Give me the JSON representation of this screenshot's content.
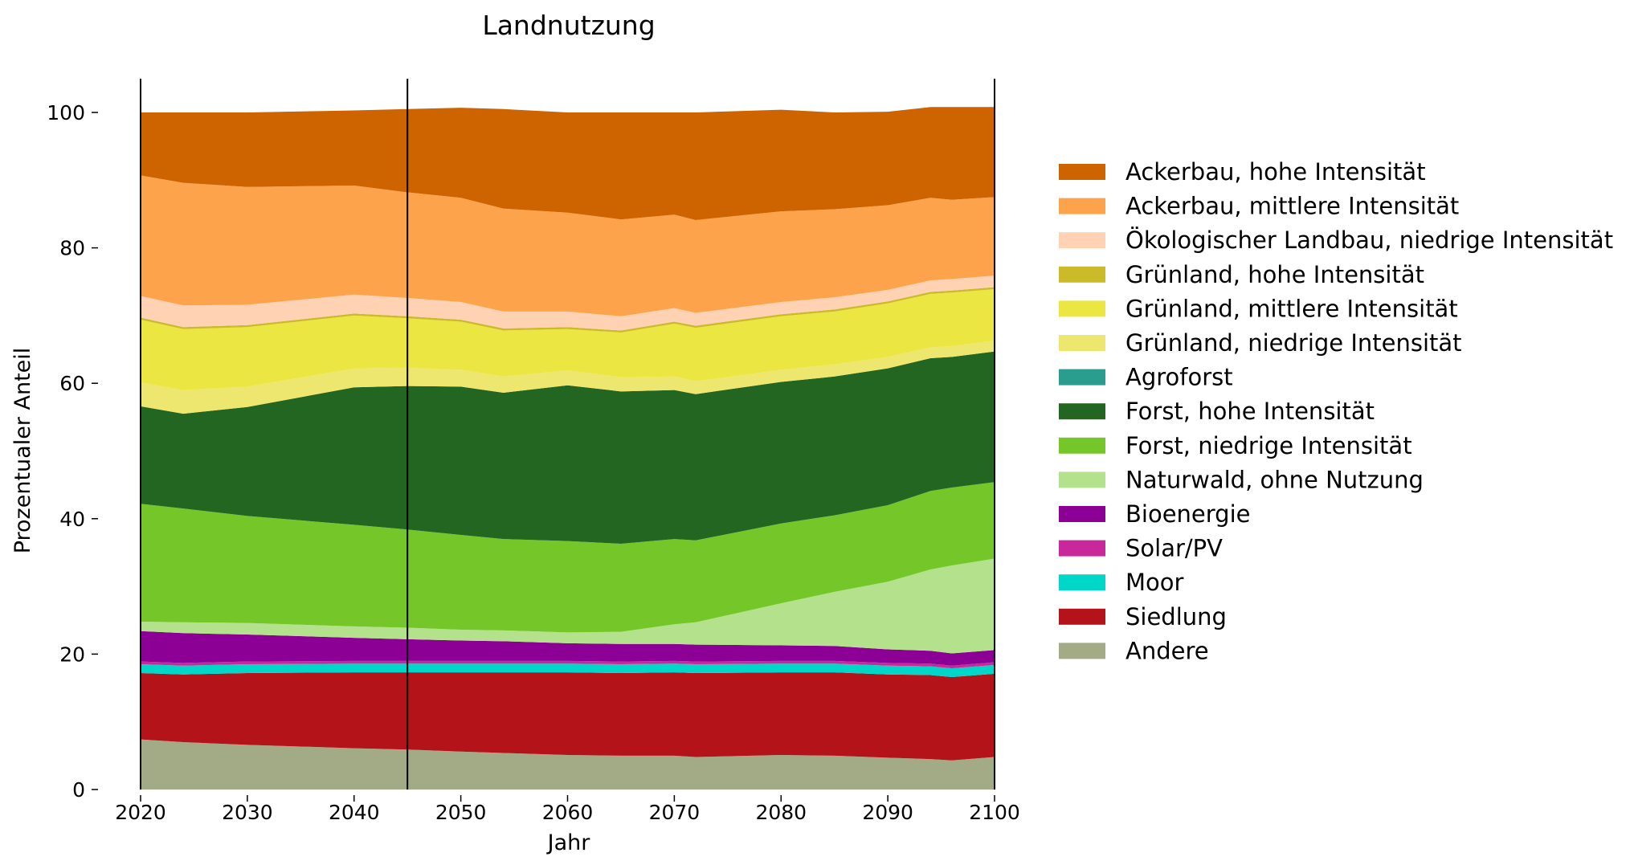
{
  "chart_data": {
    "type": "area",
    "stacked": true,
    "title": "Landnutzung",
    "xlabel": "Jahr",
    "ylabel": "Prozentualer Anteil",
    "xlim": [
      2020,
      2100
    ],
    "ylim": [
      0,
      100
    ],
    "xticks": [
      2020,
      2030,
      2040,
      2050,
      2060,
      2070,
      2080,
      2090,
      2100
    ],
    "yticks": [
      0,
      20,
      40,
      60,
      80,
      100
    ],
    "vlines": [
      2020,
      2045,
      2100
    ],
    "legend_position": "right",
    "x": [
      2020,
      2024,
      2030,
      2040,
      2045,
      2050,
      2054,
      2060,
      2065,
      2070,
      2072,
      2080,
      2085,
      2090,
      2094,
      2096,
      2100
    ],
    "series": [
      {
        "name": "Andere",
        "color": "#a3ab86",
        "values": [
          7.4,
          7.0,
          6.6,
          6.1,
          5.9,
          5.6,
          5.4,
          5.1,
          5.0,
          5.0,
          4.8,
          5.1,
          5.0,
          4.7,
          4.5,
          4.3,
          4.8
        ]
      },
      {
        "name": "Siedlung",
        "color": "#b41419",
        "values": [
          9.8,
          10.0,
          10.6,
          11.2,
          11.4,
          11.7,
          11.9,
          12.2,
          12.2,
          12.3,
          12.4,
          12.2,
          12.3,
          12.3,
          12.4,
          12.3,
          12.3
        ]
      },
      {
        "name": "Moor",
        "color": "#00d7c8",
        "values": [
          1.3,
          1.3,
          1.3,
          1.3,
          1.3,
          1.3,
          1.3,
          1.3,
          1.3,
          1.3,
          1.3,
          1.3,
          1.3,
          1.3,
          1.3,
          1.3,
          1.3
        ]
      },
      {
        "name": "Solar/PV",
        "color": "#c8289b",
        "values": [
          0.4,
          0.4,
          0.4,
          0.4,
          0.4,
          0.4,
          0.4,
          0.4,
          0.4,
          0.4,
          0.4,
          0.4,
          0.4,
          0.4,
          0.4,
          0.4,
          0.4
        ]
      },
      {
        "name": "Bioenergie",
        "color": "#8c0096",
        "values": [
          4.5,
          4.4,
          4.0,
          3.4,
          3.2,
          3.0,
          2.9,
          2.6,
          2.6,
          2.5,
          2.5,
          2.3,
          2.2,
          2.0,
          1.9,
          1.8,
          1.8
        ]
      },
      {
        "name": "Naturwald, ohne Nutzung",
        "color": "#b4e18c",
        "values": [
          1.4,
          1.6,
          1.7,
          1.7,
          1.7,
          1.6,
          1.6,
          1.6,
          1.8,
          2.9,
          3.3,
          6.2,
          8.0,
          10.0,
          12.0,
          13.0,
          13.5
        ]
      },
      {
        "name": "Forst, niedrige Intensität",
        "color": "#74c629",
        "values": [
          17.4,
          16.8,
          15.8,
          15.0,
          14.5,
          14.0,
          13.5,
          13.5,
          13.0,
          12.6,
          12.1,
          11.8,
          11.3,
          11.3,
          11.6,
          11.5,
          11.3
        ]
      },
      {
        "name": "Forst, hohe Intensität",
        "color": "#226622",
        "values": [
          14.4,
          14.0,
          16.1,
          20.3,
          21.2,
          21.9,
          21.6,
          23.0,
          22.5,
          22.0,
          21.6,
          20.9,
          20.5,
          20.2,
          19.6,
          19.3,
          19.3
        ]
      },
      {
        "name": "Agroforst",
        "color": "#2a9d8f",
        "values": [
          0.0,
          0.0,
          0.0,
          0.0,
          0.0,
          0.0,
          0.0,
          0.0,
          0.0,
          0.0,
          0.0,
          0.0,
          0.0,
          0.0,
          0.0,
          0.0,
          0.0
        ]
      },
      {
        "name": "Grünland, niedrige Intensität",
        "color": "#ede66f",
        "values": [
          3.5,
          3.5,
          3.0,
          2.8,
          2.7,
          2.5,
          2.4,
          2.2,
          2.1,
          2.0,
          1.9,
          1.8,
          1.8,
          1.7,
          1.6,
          1.6,
          1.6
        ]
      },
      {
        "name": "Grünland, mittlere Intensität",
        "color": "#ebe641",
        "values": [
          9.3,
          9.0,
          8.8,
          7.8,
          7.3,
          7.1,
          6.8,
          6.1,
          6.6,
          7.8,
          7.9,
          7.9,
          7.8,
          7.9,
          7.9,
          7.9,
          7.6
        ]
      },
      {
        "name": "Grünland, hohe Intensität",
        "color": "#cbbb29",
        "values": [
          0.3,
          0.3,
          0.3,
          0.3,
          0.3,
          0.3,
          0.3,
          0.3,
          0.3,
          0.3,
          0.3,
          0.3,
          0.3,
          0.3,
          0.3,
          0.3,
          0.3
        ]
      },
      {
        "name": "Ökologischer Landbau, niedrige Intensität",
        "color": "#ffd2b4",
        "values": [
          3.2,
          3.2,
          3.0,
          2.8,
          2.7,
          2.6,
          2.5,
          2.3,
          2.1,
          2.0,
          1.9,
          1.8,
          1.8,
          1.7,
          1.7,
          1.7,
          1.7
        ]
      },
      {
        "name": "Ackerbau, mittlere Intensität",
        "color": "#fca34c",
        "values": [
          17.8,
          18.1,
          17.4,
          16.1,
          15.6,
          15.4,
          15.2,
          14.6,
          14.3,
          13.8,
          13.7,
          13.4,
          13.0,
          12.5,
          12.2,
          11.7,
          11.6
        ]
      },
      {
        "name": "Ackerbau, hohe Intensität",
        "color": "#cd6400",
        "values": [
          9.3,
          10.4,
          11.0,
          11.1,
          12.3,
          13.3,
          14.7,
          14.8,
          15.8,
          15.1,
          15.9,
          15.0,
          14.3,
          13.8,
          13.4,
          13.7,
          13.3
        ]
      }
    ]
  }
}
